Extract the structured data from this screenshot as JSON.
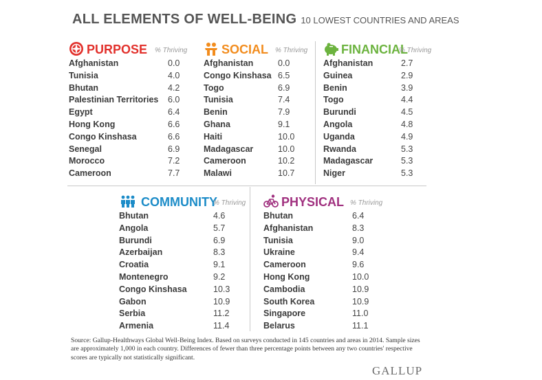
{
  "title": {
    "main": "ALL ELEMENTS OF WELL-BEING",
    "sub": "10 LOWEST COUNTRIES AND AREAS"
  },
  "colors": {
    "purpose": "#e2312c",
    "social": "#f28c1d",
    "financial": "#6cb33f",
    "community": "#1c8cc8",
    "physical": "#a0307f"
  },
  "purpose": {
    "name": "PURPOSE",
    "col": "% Thriving",
    "icon": "compass-icon",
    "rows": [
      {
        "c": "Afghanistan",
        "v": "0.0"
      },
      {
        "c": "Tunisia",
        "v": "4.0"
      },
      {
        "c": "Bhutan",
        "v": "4.2"
      },
      {
        "c": "Palestinian Territories",
        "v": "6.0"
      },
      {
        "c": "Egypt",
        "v": "6.4"
      },
      {
        "c": "Hong Kong",
        "v": "6.6"
      },
      {
        "c": "Congo Kinshasa",
        "v": "6.6"
      },
      {
        "c": "Senegal",
        "v": "6.9"
      },
      {
        "c": "Morocco",
        "v": "7.2"
      },
      {
        "c": "Cameroon",
        "v": "7.7"
      }
    ]
  },
  "social": {
    "name": "SOCIAL",
    "col": "% Thriving",
    "icon": "people-icon",
    "rows": [
      {
        "c": "Afghanistan",
        "v": "0.0"
      },
      {
        "c": "Congo Kinshasa",
        "v": "6.5"
      },
      {
        "c": "Togo",
        "v": "6.9"
      },
      {
        "c": "Tunisia",
        "v": "7.4"
      },
      {
        "c": "Benin",
        "v": "7.9"
      },
      {
        "c": "Ghana",
        "v": "9.1"
      },
      {
        "c": "Haiti",
        "v": "10.0"
      },
      {
        "c": "Madagascar",
        "v": "10.0"
      },
      {
        "c": "Cameroon",
        "v": "10.2"
      },
      {
        "c": "Malawi",
        "v": "10.7"
      }
    ]
  },
  "financial": {
    "name": "FINANCIAL",
    "col": "% Thriving",
    "icon": "piggy-bank-icon",
    "rows": [
      {
        "c": "Afghanistan",
        "v": "2.7"
      },
      {
        "c": "Guinea",
        "v": "2.9"
      },
      {
        "c": "Benin",
        "v": "3.9"
      },
      {
        "c": "Togo",
        "v": "4.4"
      },
      {
        "c": "Burundi",
        "v": "4.5"
      },
      {
        "c": "Angola",
        "v": "4.8"
      },
      {
        "c": "Uganda",
        "v": "4.9"
      },
      {
        "c": "Rwanda",
        "v": "5.3"
      },
      {
        "c": "Madagascar",
        "v": "5.3"
      },
      {
        "c": "Niger",
        "v": "5.3"
      }
    ]
  },
  "community": {
    "name": "COMMUNITY",
    "col": "% Thriving",
    "icon": "community-icon",
    "rows": [
      {
        "c": "Bhutan",
        "v": "4.6"
      },
      {
        "c": "Angola",
        "v": "5.7"
      },
      {
        "c": "Burundi",
        "v": "6.9"
      },
      {
        "c": "Azerbaijan",
        "v": "8.3"
      },
      {
        "c": "Croatia",
        "v": "9.1"
      },
      {
        "c": "Montenegro",
        "v": "9.2"
      },
      {
        "c": "Congo Kinshasa",
        "v": "10.3"
      },
      {
        "c": "Gabon",
        "v": "10.9"
      },
      {
        "c": "Serbia",
        "v": "11.2"
      },
      {
        "c": "Armenia",
        "v": "11.4"
      }
    ]
  },
  "physical": {
    "name": "PHYSICAL",
    "col": "% Thriving",
    "icon": "bicycle-icon",
    "rows": [
      {
        "c": "Bhutan",
        "v": "6.4"
      },
      {
        "c": "Afghanistan",
        "v": "8.3"
      },
      {
        "c": "Tunisia",
        "v": "9.0"
      },
      {
        "c": "Ukraine",
        "v": "9.4"
      },
      {
        "c": "Cameroon",
        "v": "9.6"
      },
      {
        "c": "Hong Kong",
        "v": "10.0"
      },
      {
        "c": "Cambodia",
        "v": "10.9"
      },
      {
        "c": "South Korea",
        "v": "10.9"
      },
      {
        "c": "Singapore",
        "v": "11.0"
      },
      {
        "c": "Belarus",
        "v": "11.1"
      }
    ]
  },
  "footer": {
    "source": "Source: Gallup-Healthways Global Well-Being Index. Based on surveys conducted in 145 countries and areas in 2014. Sample sizes are approximately 1,000 in each country. Differences of fewer than three percentage points between any two countries' respective scores are typically not statistically significant."
  },
  "logo": "GALLUP"
}
